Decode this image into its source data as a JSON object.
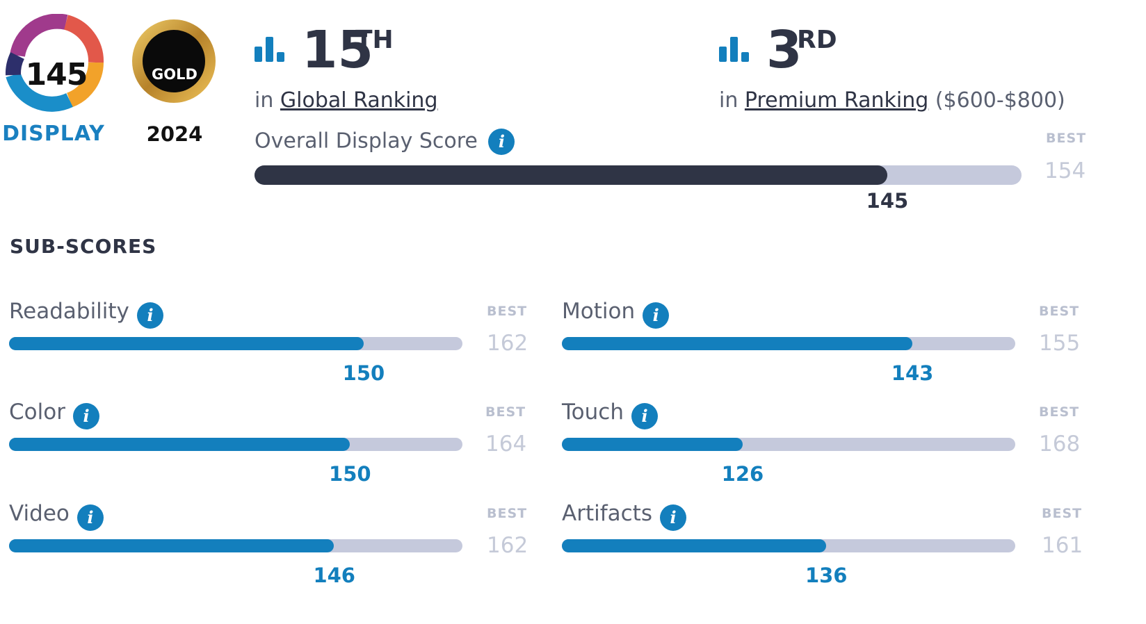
{
  "badges": {
    "display": {
      "score": "145",
      "label": "DISPLAY"
    },
    "award": {
      "tier": "GOLD",
      "year": "2024"
    }
  },
  "rankings": [
    {
      "icon": "bar-chart-icon",
      "number": "15",
      "suffix": "TH",
      "prefix": "in",
      "link": "Global Ranking",
      "extra": ""
    },
    {
      "icon": "bar-chart-icon",
      "number": "3",
      "suffix": "RD",
      "prefix": "in",
      "link": "Premium Ranking",
      "extra": "($600-$800)"
    }
  ],
  "overall": {
    "title": "Overall Display Score",
    "score": 145,
    "best_label": "BEST",
    "best": 154
  },
  "subscores": {
    "heading": "SUB-SCORES",
    "best_label": "BEST",
    "items": [
      {
        "name": "Readability",
        "score": 150,
        "best": 162
      },
      {
        "name": "Motion",
        "score": 143,
        "best": 155
      },
      {
        "name": "Color",
        "score": 150,
        "best": 164
      },
      {
        "name": "Touch",
        "score": 126,
        "best": 168
      },
      {
        "name": "Video",
        "score": 146,
        "best": 162
      },
      {
        "name": "Artifacts",
        "score": 136,
        "best": 161
      }
    ]
  },
  "colors": {
    "accent": "#137fbd",
    "dark_bar": "#2f3445",
    "track": "#c5c9dc",
    "gold": "#c9962c"
  }
}
